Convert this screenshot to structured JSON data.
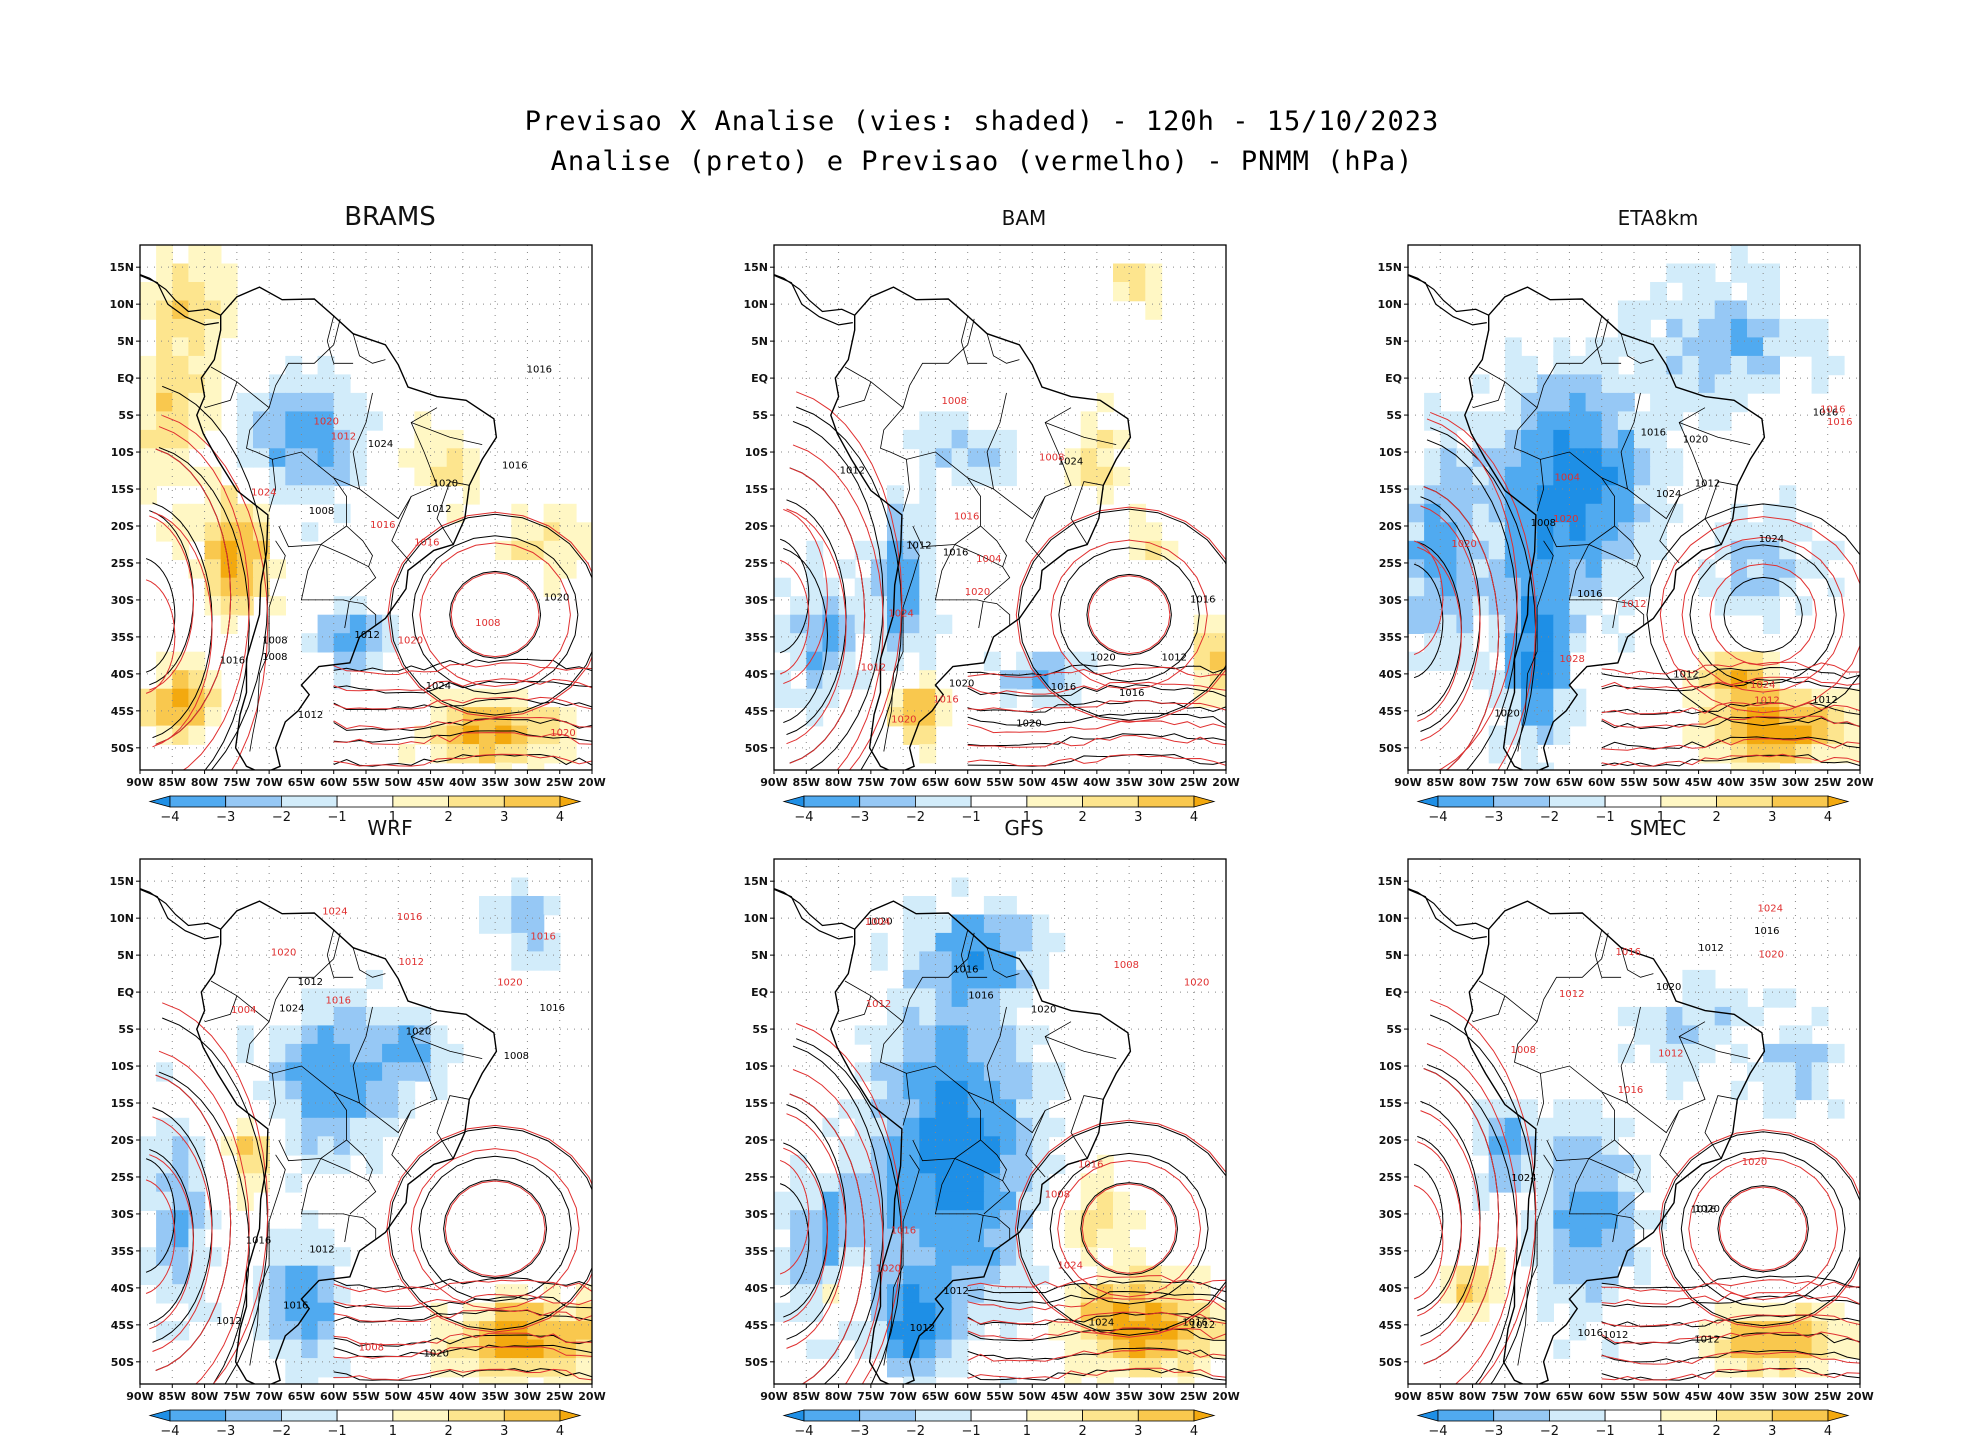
{
  "header": {
    "line1": "Previsao X Analise (vies: shaded) - 120h - 15/10/2023",
    "line2": "Analise (preto) e Previsao (vermelho) - PNMM (hPa)"
  },
  "chart_data": [
    {
      "type": "heatmap",
      "title": "BRAMS",
      "variable": "PNMM (hPa)",
      "shaded": "vies",
      "xlim": [
        -90,
        -20
      ],
      "ylim": [
        -53,
        18
      ],
      "x_ticks": [
        "90W",
        "85W",
        "80W",
        "75W",
        "70W",
        "65W",
        "60W",
        "55W",
        "50W",
        "45W",
        "40W",
        "35W",
        "30W",
        "25W",
        "20W"
      ],
      "y_ticks": [
        "15N",
        "10N",
        "5N",
        "EQ",
        "5S",
        "10S",
        "15S",
        "20S",
        "25S",
        "30S",
        "35S",
        "40S",
        "45S",
        "50S"
      ],
      "colorbar": [
        -4,
        -3,
        -2,
        -1,
        1,
        2,
        3,
        4
      ],
      "analysis_contour_labels": [
        "1008",
        "1008",
        "1012",
        "1012",
        "1016",
        "1016",
        "1020",
        "1024",
        "1024",
        "1020",
        "1016",
        "1012",
        "1008"
      ],
      "forecast_contour_labels": [
        "1008",
        "1012",
        "1016",
        "1020",
        "1024",
        "1020",
        "1016",
        "1020"
      ]
    },
    {
      "type": "heatmap",
      "title": "BAM",
      "variable": "PNMM (hPa)",
      "shaded": "vies",
      "xlim": [
        -90,
        -20
      ],
      "ylim": [
        -53,
        18
      ],
      "x_ticks": [
        "90W",
        "85W",
        "80W",
        "75W",
        "70W",
        "65W",
        "60W",
        "55W",
        "50W",
        "45W",
        "40W",
        "35W",
        "30W",
        "25W",
        "20W"
      ],
      "y_ticks": [
        "15N",
        "10N",
        "5N",
        "EQ",
        "5S",
        "10S",
        "15S",
        "20S",
        "25S",
        "30S",
        "35S",
        "40S",
        "45S",
        "50S"
      ],
      "colorbar": [
        -4,
        -3,
        -2,
        -1,
        1,
        2,
        3,
        4
      ],
      "analysis_contour_labels": [
        "1016",
        "1012",
        "1016",
        "1012",
        "1016",
        "1020",
        "1024",
        "1020",
        "1016",
        "1012",
        "1020"
      ],
      "forecast_contour_labels": [
        "1012",
        "1008",
        "1016",
        "1020",
        "1024",
        "1016",
        "1008",
        "1004",
        "1020"
      ]
    },
    {
      "type": "heatmap",
      "title": "ETA8km",
      "variable": "PNMM (hPa)",
      "shaded": "vies",
      "xlim": [
        -90,
        -20
      ],
      "ylim": [
        -53,
        18
      ],
      "x_ticks": [
        "90W",
        "85W",
        "80W",
        "75W",
        "70W",
        "65W",
        "60W",
        "55W",
        "50W",
        "45W",
        "40W",
        "35W",
        "30W",
        "25W",
        "20W"
      ],
      "y_ticks": [
        "15N",
        "10N",
        "5N",
        "EQ",
        "5S",
        "10S",
        "15S",
        "20S",
        "25S",
        "30S",
        "35S",
        "40S",
        "45S",
        "50S"
      ],
      "colorbar": [
        -4,
        -3,
        -2,
        -1,
        1,
        2,
        3,
        4
      ],
      "analysis_contour_labels": [
        "1016",
        "1012",
        "1012",
        "1016",
        "1020",
        "1024",
        "1020",
        "1016",
        "1012",
        "1024",
        "1008"
      ],
      "forecast_contour_labels": [
        "1012",
        "1012",
        "1016",
        "1020",
        "1024",
        "1020",
        "1016",
        "1004",
        "1028"
      ]
    },
    {
      "type": "heatmap",
      "title": "WRF",
      "variable": "PNMM (hPa)",
      "shaded": "vies",
      "xlim": [
        -90,
        -20
      ],
      "ylim": [
        -53,
        18
      ],
      "x_ticks": [
        "90W",
        "85W",
        "80W",
        "75W",
        "70W",
        "65W",
        "60W",
        "55W",
        "50W",
        "45W",
        "40W",
        "35W",
        "30W",
        "25W",
        "20W"
      ],
      "y_ticks": [
        "15N",
        "10N",
        "5N",
        "EQ",
        "5S",
        "10S",
        "15S",
        "20S",
        "25S",
        "30S",
        "35S",
        "40S",
        "45S",
        "50S"
      ],
      "colorbar": [
        -4,
        -3,
        -2,
        -1,
        1,
        2,
        3,
        4
      ],
      "analysis_contour_labels": [
        "1012",
        "1016",
        "1012",
        "1016",
        "1020",
        "1024",
        "1020",
        "1016",
        "1012",
        "1008"
      ],
      "forecast_contour_labels": [
        "1016",
        "1008",
        "1012",
        "1016",
        "1020",
        "1024",
        "1020",
        "1016",
        "1004"
      ]
    },
    {
      "type": "heatmap",
      "title": "GFS",
      "variable": "PNMM (hPa)",
      "shaded": "vies",
      "xlim": [
        -90,
        -20
      ],
      "ylim": [
        -53,
        18
      ],
      "x_ticks": [
        "90W",
        "85W",
        "80W",
        "75W",
        "70W",
        "65W",
        "60W",
        "55W",
        "50W",
        "45W",
        "40W",
        "35W",
        "30W",
        "25W",
        "20W"
      ],
      "y_ticks": [
        "15N",
        "10N",
        "5N",
        "EQ",
        "5S",
        "10S",
        "15S",
        "20S",
        "25S",
        "30S",
        "35S",
        "40S",
        "45S",
        "50S"
      ],
      "colorbar": [
        -4,
        -3,
        -2,
        -1,
        1,
        2,
        3,
        4
      ],
      "analysis_contour_labels": [
        "1012",
        "1016",
        "1012",
        "1016",
        "1020",
        "1024",
        "1020",
        "1016",
        "1012"
      ],
      "forecast_contour_labels": [
        "1012",
        "1008",
        "1004",
        "1016",
        "1020",
        "1024",
        "1020",
        "1016",
        "1008"
      ]
    },
    {
      "type": "heatmap",
      "title": "SMEC",
      "variable": "PNMM (hPa)",
      "shaded": "vies",
      "xlim": [
        -90,
        -20
      ],
      "ylim": [
        -53,
        18
      ],
      "x_ticks": [
        "90W",
        "85W",
        "80W",
        "75W",
        "70W",
        "65W",
        "60W",
        "55W",
        "50W",
        "45W",
        "40W",
        "35W",
        "30W",
        "25W",
        "20W"
      ],
      "y_ticks": [
        "15N",
        "10N",
        "5N",
        "EQ",
        "5S",
        "10S",
        "15S",
        "20S",
        "25S",
        "30S",
        "35S",
        "40S",
        "45S",
        "50S"
      ],
      "colorbar": [
        -4,
        -3,
        -2,
        -1,
        1,
        2,
        3,
        4
      ],
      "analysis_contour_labels": [
        "1016",
        "1012",
        "1020",
        "1016",
        "1012",
        "1024",
        "1020",
        "1016",
        "1012"
      ],
      "forecast_contour_labels": [
        "1016",
        "1012",
        "1020",
        "1024",
        "1020",
        "1016",
        "1012",
        "1008"
      ]
    }
  ],
  "colors": {
    "neg4": "#1e8fe6",
    "neg3": "#50aaf0",
    "neg2": "#96c8f5",
    "neg1": "#d2ecfa",
    "zero": "#ffffff",
    "pos1": "#fff7c4",
    "pos2": "#fde58e",
    "pos3": "#f9c84e",
    "pos4": "#f3a90f",
    "analysis": "#000000",
    "forecast": "#e03030"
  }
}
